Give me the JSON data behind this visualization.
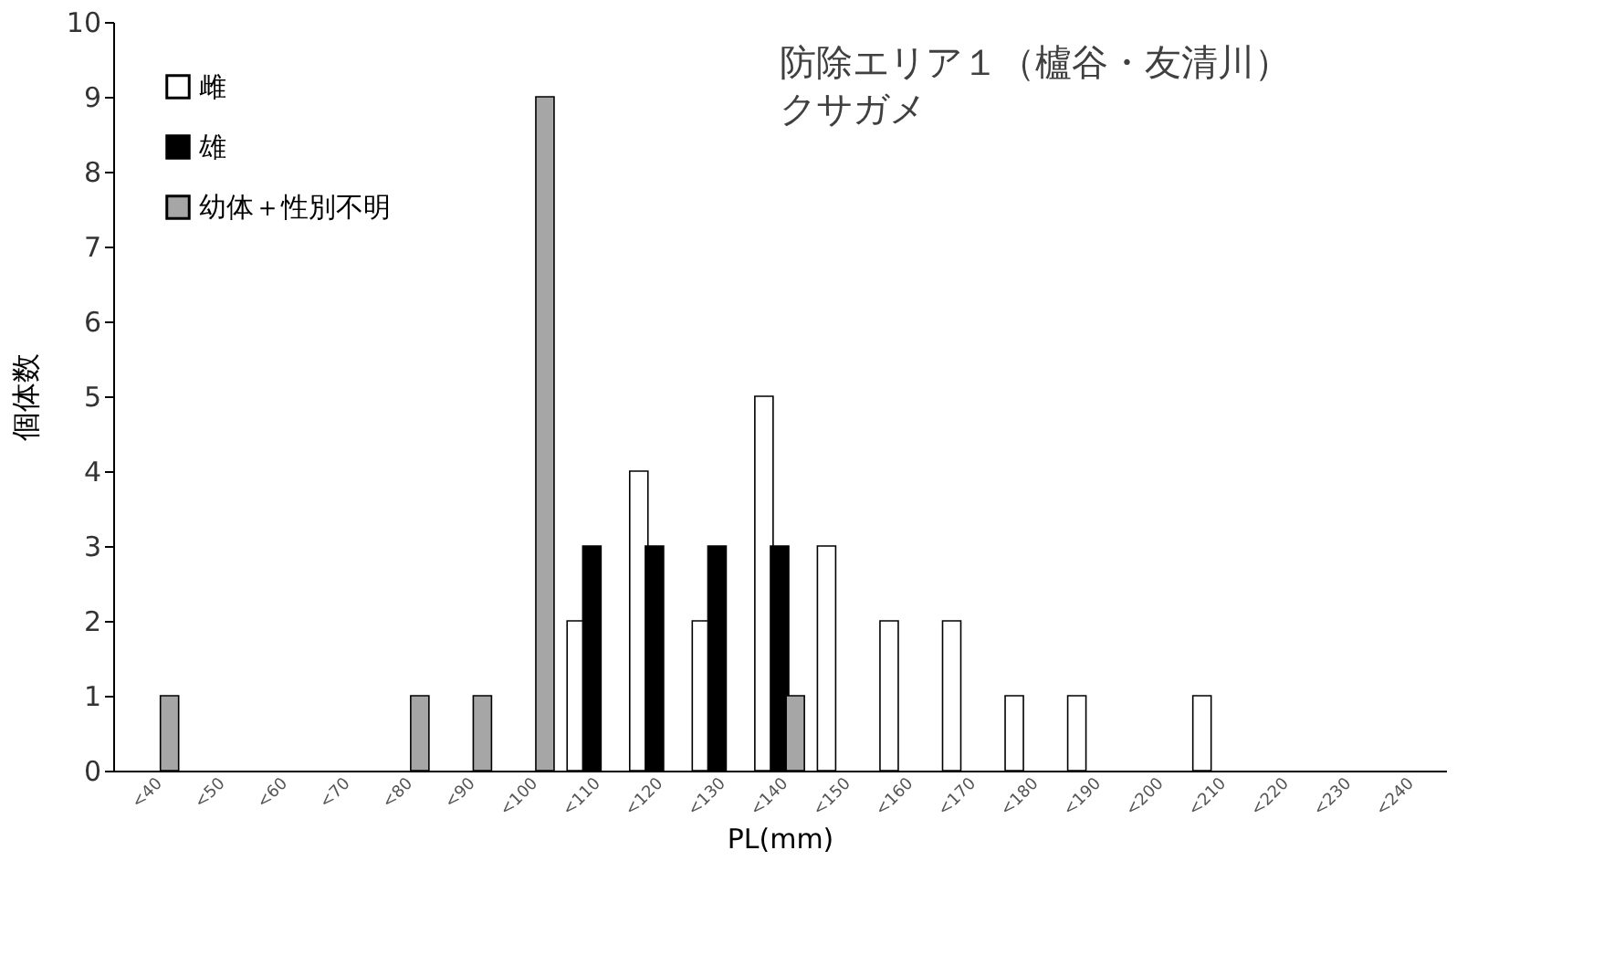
{
  "chart_data": {
    "type": "bar",
    "title": "防除エリア１（櫨谷・友清川）",
    "subtitle": "クサガメ",
    "xlabel": "PL(mm)",
    "ylabel": "個体数",
    "categories": [
      "<40",
      "<50",
      "<60",
      "<70",
      "<80",
      "<90",
      "<100",
      "<110",
      "<120",
      "<130",
      "<140",
      "<150",
      "<160",
      "<170",
      "<180",
      "<190",
      "<200",
      "<210",
      "<220",
      "<230",
      "<240"
    ],
    "series": [
      {
        "name": "雌",
        "color": "#ffffff",
        "values": [
          0,
          0,
          0,
          0,
          0,
          0,
          0,
          2,
          4,
          2,
          5,
          3,
          2,
          2,
          1,
          1,
          0,
          1,
          0,
          0,
          0
        ]
      },
      {
        "name": "雄",
        "color": "#000000",
        "values": [
          0,
          0,
          0,
          0,
          0,
          0,
          0,
          3,
          3,
          3,
          3,
          0,
          0,
          0,
          0,
          0,
          0,
          0,
          0,
          0,
          0
        ]
      },
      {
        "name": "幼体＋性別不明",
        "color": "#a6a6a6",
        "values": [
          1,
          0,
          0,
          0,
          1,
          1,
          9,
          0,
          0,
          0,
          1,
          0,
          0,
          0,
          0,
          0,
          0,
          0,
          0,
          0,
          0
        ]
      }
    ],
    "ylim": [
      0,
      10
    ],
    "yticks": [
      0,
      1,
      2,
      3,
      4,
      5,
      6,
      7,
      8,
      9,
      10
    ],
    "grid": false,
    "legend": "top left"
  }
}
